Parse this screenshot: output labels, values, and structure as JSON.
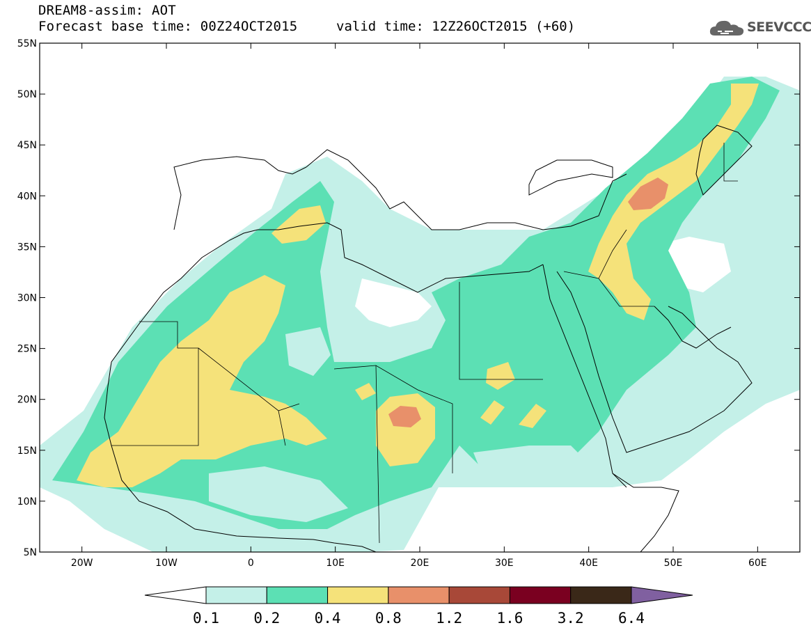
{
  "title": {
    "line1": "DREAM8-assim: AOT",
    "line2": "Forecast base time: 00Z24OCT2015",
    "valid": "valid time: 12Z26OCT2015 (+60)"
  },
  "logo": {
    "icon": "cloud-icon",
    "text": "SEEVCCC"
  },
  "map": {
    "lon_range": [
      -25,
      65
    ],
    "lat_range": [
      5,
      55
    ],
    "lat_ticks": [
      "55N",
      "50N",
      "45N",
      "40N",
      "35N",
      "30N",
      "25N",
      "20N",
      "15N",
      "10N",
      "5N"
    ],
    "lon_ticks": [
      "20W",
      "10W",
      "0",
      "10E",
      "20E",
      "30E",
      "40E",
      "50E",
      "60E"
    ]
  },
  "colorbar": {
    "labels": [
      "0.1",
      "0.2",
      "0.4",
      "0.8",
      "1.2",
      "1.6",
      "3.2",
      "6.4"
    ],
    "colors": [
      "#ffffff",
      "#c4f0e8",
      "#5ce0b4",
      "#f5e27a",
      "#e8906a",
      "#a84838",
      "#7a0020",
      "#3a2818",
      "#8060a0"
    ]
  },
  "colors": {
    "level1": "#c4f0e8",
    "level2": "#5ce0b4",
    "level3": "#f5e27a",
    "level4": "#e8906a",
    "level5": "#d46a58"
  }
}
